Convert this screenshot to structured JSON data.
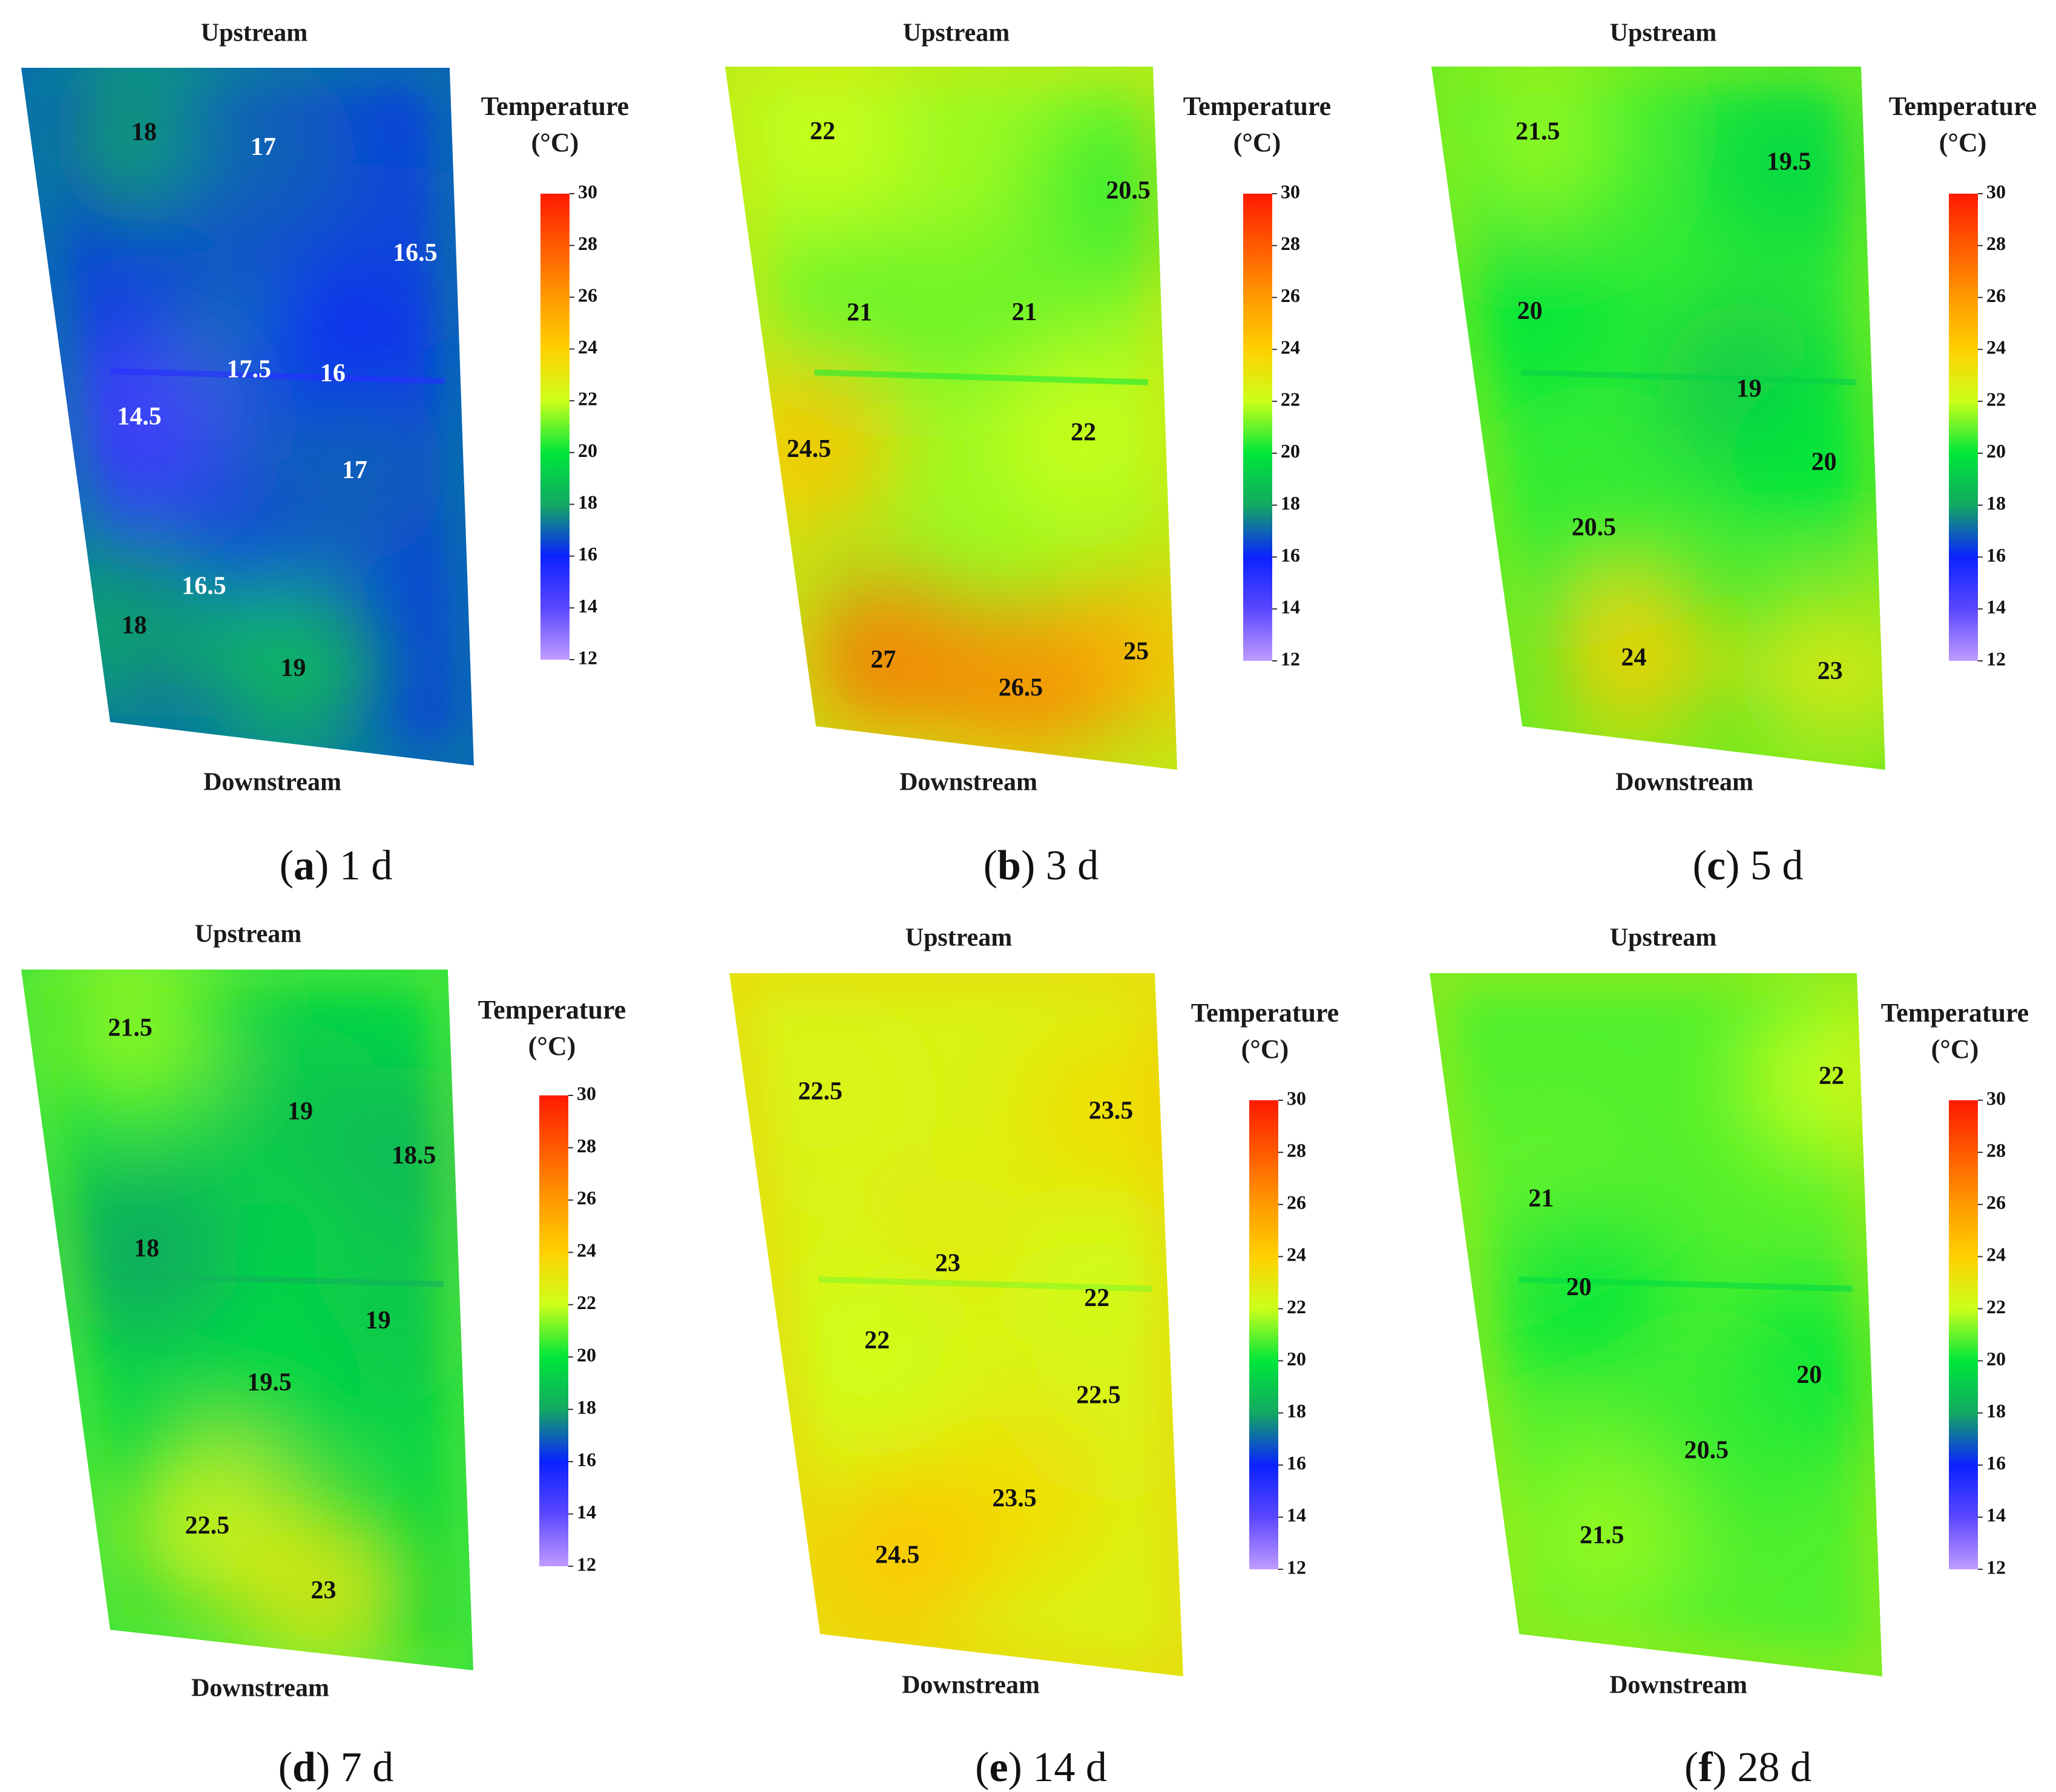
{
  "figure": {
    "top_label": "Upstream",
    "bottom_label": "Downstream",
    "legend_title_line1": "Temperature",
    "legend_title_line2": "(°C)"
  },
  "chart_data": [
    {
      "type": "heatmap",
      "panel_id": "a",
      "caption_letter": "a",
      "caption_text": "1 d",
      "colorbar": {
        "min": 12,
        "max": 30,
        "ticks": [
          "30",
          "28",
          "26",
          "24",
          "22",
          "20",
          "18",
          "16",
          "14",
          "12"
        ]
      },
      "base_temperature": 16.5,
      "annotations": [
        {
          "label": "18",
          "u": 0.27,
          "v": 0.1,
          "temp": 18
        },
        {
          "label": "17",
          "u": 0.55,
          "v": 0.12,
          "temp": 17,
          "text_color": "white"
        },
        {
          "label": "16.5",
          "u": 0.9,
          "v": 0.27,
          "temp": 16.5,
          "text_color": "white"
        },
        {
          "label": "17.5",
          "u": 0.47,
          "v": 0.45,
          "temp": 17.5,
          "text_color": "white"
        },
        {
          "label": "16",
          "u": 0.68,
          "v": 0.45,
          "temp": 16,
          "text_color": "white"
        },
        {
          "label": "14.5",
          "u": 0.18,
          "v": 0.53,
          "temp": 14.5,
          "text_color": "white"
        },
        {
          "label": "17",
          "u": 0.72,
          "v": 0.59,
          "temp": 17,
          "text_color": "white"
        },
        {
          "label": "16.5",
          "u": 0.3,
          "v": 0.78,
          "temp": 16.5,
          "text_color": "white"
        },
        {
          "label": "18",
          "u": 0.1,
          "v": 0.85,
          "temp": 18
        },
        {
          "label": "19",
          "u": 0.52,
          "v": 0.89,
          "temp": 19
        }
      ]
    },
    {
      "type": "heatmap",
      "panel_id": "b",
      "caption_letter": "b",
      "caption_text": "3 d",
      "colorbar": {
        "min": 12,
        "max": 30,
        "ticks": [
          "30",
          "28",
          "26",
          "24",
          "22",
          "20",
          "18",
          "16",
          "14",
          "12"
        ]
      },
      "base_temperature": 21.5,
      "annotations": [
        {
          "label": "22",
          "u": 0.21,
          "v": 0.1,
          "temp": 22
        },
        {
          "label": "20.5",
          "u": 0.93,
          "v": 0.18,
          "temp": 20.5
        },
        {
          "label": "21",
          "u": 0.25,
          "v": 0.37,
          "temp": 21
        },
        {
          "label": "21",
          "u": 0.66,
          "v": 0.36,
          "temp": 21
        },
        {
          "label": "22",
          "u": 0.79,
          "v": 0.53,
          "temp": 22
        },
        {
          "label": "24.5",
          "u": 0.08,
          "v": 0.58,
          "temp": 24.5
        },
        {
          "label": "25",
          "u": 0.9,
          "v": 0.84,
          "temp": 25
        },
        {
          "label": "27",
          "u": 0.21,
          "v": 0.89,
          "temp": 27
        },
        {
          "label": "26.5",
          "u": 0.58,
          "v": 0.91,
          "temp": 26.5
        }
      ]
    },
    {
      "type": "heatmap",
      "panel_id": "c",
      "caption_letter": "c",
      "caption_text": "5 d",
      "colorbar": {
        "min": 12,
        "max": 30,
        "ticks": [
          "30",
          "28",
          "26",
          "24",
          "22",
          "20",
          "18",
          "16",
          "14",
          "12"
        ]
      },
      "base_temperature": 20.5,
      "annotations": [
        {
          "label": "21.5",
          "u": 0.23,
          "v": 0.1,
          "temp": 21.5
        },
        {
          "label": "19.5",
          "u": 0.82,
          "v": 0.14,
          "temp": 19.5
        },
        {
          "label": "20",
          "u": 0.16,
          "v": 0.37,
          "temp": 20
        },
        {
          "label": "19",
          "u": 0.69,
          "v": 0.47,
          "temp": 19
        },
        {
          "label": "20",
          "u": 0.87,
          "v": 0.57,
          "temp": 20
        },
        {
          "label": "20.5",
          "u": 0.26,
          "v": 0.69,
          "temp": 20.5
        },
        {
          "label": "23",
          "u": 0.86,
          "v": 0.87,
          "temp": 23
        },
        {
          "label": "24",
          "u": 0.33,
          "v": 0.88,
          "temp": 24
        }
      ]
    },
    {
      "type": "heatmap",
      "panel_id": "d",
      "caption_letter": "d",
      "caption_text": "7 d",
      "colorbar": {
        "min": 12,
        "max": 30,
        "ticks": [
          "30",
          "28",
          "26",
          "24",
          "22",
          "20",
          "18",
          "16",
          "14",
          "12"
        ]
      },
      "base_temperature": 19.5,
      "annotations": [
        {
          "label": "21.5",
          "u": 0.24,
          "v": 0.09,
          "temp": 21.5
        },
        {
          "label": "19",
          "u": 0.63,
          "v": 0.21,
          "temp": 19
        },
        {
          "label": "18.5",
          "u": 0.9,
          "v": 0.27,
          "temp": 18.5
        },
        {
          "label": "18",
          "u": 0.22,
          "v": 0.42,
          "temp": 18
        },
        {
          "label": "19",
          "u": 0.79,
          "v": 0.51,
          "temp": 19
        },
        {
          "label": "19.5",
          "u": 0.5,
          "v": 0.61,
          "temp": 19.5
        },
        {
          "label": "22.5",
          "u": 0.3,
          "v": 0.83,
          "temp": 22.5
        },
        {
          "label": "23",
          "u": 0.6,
          "v": 0.91,
          "temp": 23
        }
      ]
    },
    {
      "type": "heatmap",
      "panel_id": "e",
      "caption_letter": "e",
      "caption_text": "14 d",
      "colorbar": {
        "min": 12,
        "max": 30,
        "ticks": [
          "30",
          "28",
          "26",
          "24",
          "22",
          "20",
          "18",
          "16",
          "14",
          "12"
        ]
      },
      "base_temperature": 22.5,
      "annotations": [
        {
          "label": "22.5",
          "u": 0.18,
          "v": 0.18,
          "temp": 22.5
        },
        {
          "label": "23.5",
          "u": 0.88,
          "v": 0.2,
          "temp": 23.5
        },
        {
          "label": "23",
          "u": 0.45,
          "v": 0.43,
          "temp": 23
        },
        {
          "label": "22",
          "u": 0.82,
          "v": 0.47,
          "temp": 22
        },
        {
          "label": "22",
          "u": 0.25,
          "v": 0.55,
          "temp": 22
        },
        {
          "label": "22.5",
          "u": 0.81,
          "v": 0.61,
          "temp": 22.5
        },
        {
          "label": "23.5",
          "u": 0.57,
          "v": 0.77,
          "temp": 23.5
        },
        {
          "label": "24.5",
          "u": 0.24,
          "v": 0.87,
          "temp": 24.5
        }
      ]
    },
    {
      "type": "heatmap",
      "panel_id": "f",
      "caption_letter": "f",
      "caption_text": "28 d",
      "colorbar": {
        "min": 12,
        "max": 30,
        "ticks": [
          "30",
          "28",
          "26",
          "24",
          "22",
          "20",
          "18",
          "16",
          "14",
          "12"
        ]
      },
      "base_temperature": 20.8,
      "annotations": [
        {
          "label": "22",
          "u": 0.93,
          "v": 0.15,
          "temp": 22
        },
        {
          "label": "21",
          "u": 0.2,
          "v": 0.34,
          "temp": 21
        },
        {
          "label": "20",
          "u": 0.27,
          "v": 0.47,
          "temp": 20
        },
        {
          "label": "20",
          "u": 0.84,
          "v": 0.58,
          "temp": 20
        },
        {
          "label": "20.5",
          "u": 0.56,
          "v": 0.7,
          "temp": 20.5
        },
        {
          "label": "21.5",
          "u": 0.26,
          "v": 0.84,
          "temp": 21.5
        }
      ]
    }
  ]
}
